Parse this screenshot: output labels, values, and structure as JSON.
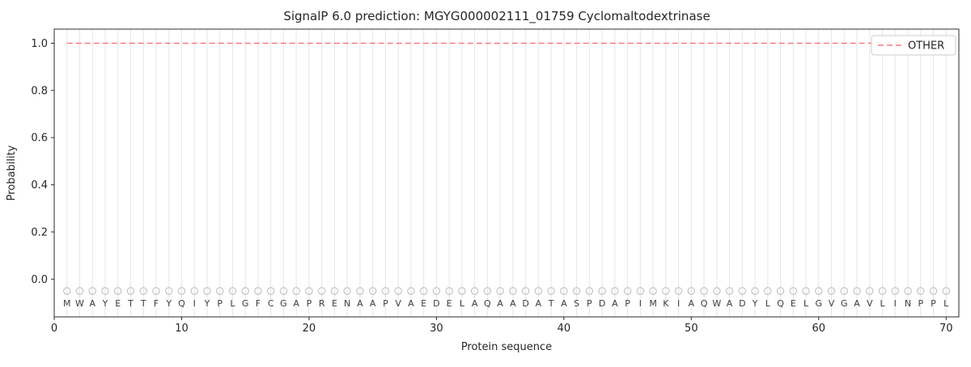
{
  "chart_data": {
    "type": "line",
    "title": "SignalP 6.0 prediction: MGYG000002111_01759 Cyclomaltodextrinase",
    "xlabel": "Protein sequence",
    "ylabel": "Probability",
    "xlim": [
      0,
      71
    ],
    "ylim": [
      -0.16,
      1.06
    ],
    "xticks": [
      0,
      10,
      20,
      30,
      40,
      50,
      60,
      70
    ],
    "yticks": [
      0.0,
      0.2,
      0.4,
      0.6,
      0.8,
      1.0
    ],
    "grid": {
      "vertical_line_at_each_residue": true,
      "color": "#e6e6e6"
    },
    "sequence": [
      "M",
      "W",
      "A",
      "Y",
      "E",
      "T",
      "T",
      "F",
      "Y",
      "Q",
      "I",
      "Y",
      "P",
      "L",
      "G",
      "F",
      "C",
      "G",
      "A",
      "P",
      "R",
      "E",
      "N",
      "A",
      "A",
      "P",
      "V",
      "A",
      "E",
      "D",
      "E",
      "L",
      "A",
      "Q",
      "A",
      "A",
      "D",
      "A",
      "T",
      "A",
      "S",
      "P",
      "D",
      "A",
      "P",
      "I",
      "M",
      "K",
      "I",
      "A",
      "Q",
      "W",
      "A",
      "D",
      "Y",
      "L",
      "Q",
      "E",
      "L",
      "G",
      "V",
      "G",
      "A",
      "V",
      "L",
      "I",
      "N",
      "P",
      "P",
      "L"
    ],
    "residue_marker": {
      "shape": "circle",
      "y": -0.05,
      "color": "#b8b8b8"
    },
    "series": [
      {
        "name": "OTHER",
        "color": "#f87c7c",
        "linestyle": "dashed",
        "x": [
          1,
          70
        ],
        "y": [
          1.0,
          1.0
        ]
      }
    ],
    "legend": {
      "position": "upper-right",
      "entries": [
        {
          "label": "OTHER",
          "color": "#f87c7c",
          "linestyle": "dashed"
        }
      ]
    }
  }
}
